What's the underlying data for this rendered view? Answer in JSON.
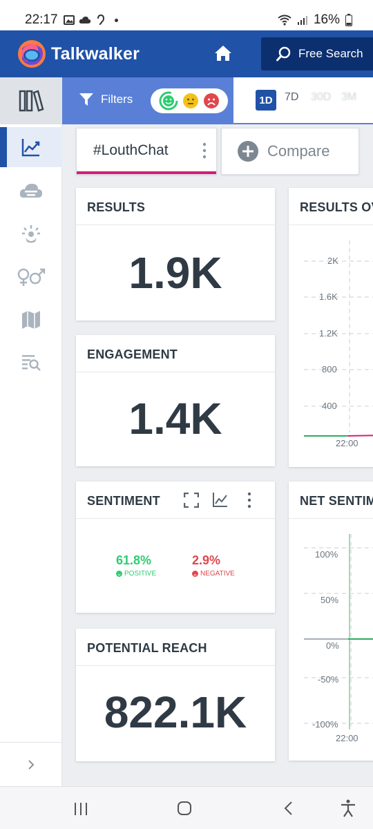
{
  "status_bar": {
    "time": "22:17",
    "battery": "16%"
  },
  "header": {
    "brand": "Talkwalker",
    "free_search_label": "Free Search"
  },
  "filter_bar": {
    "filters_label": "Filters",
    "time_ranges": [
      "1D",
      "7D",
      "30D",
      "3M"
    ],
    "selected_range": "1D"
  },
  "tabs": {
    "query": "#LouthChat",
    "compare": "Compare"
  },
  "results": {
    "title": "RESULTS",
    "value": "1.9K"
  },
  "engagement": {
    "title": "ENGAGEMENT",
    "value": "1.4K"
  },
  "sentiment": {
    "title": "SENTIMENT",
    "positive_value": "61.8%",
    "positive_label": "POSITIVE",
    "negative_value": "2.9%",
    "negative_label": "NEGATIVE"
  },
  "potential_reach": {
    "title": "POTENTIAL REACH",
    "value": "822.1K"
  },
  "results_over_time": {
    "title": "RESULTS OV",
    "y_ticks": [
      "2K",
      "1.6K",
      "1.2K",
      "800",
      "400"
    ],
    "x_tick": "22:00"
  },
  "net_sentiment": {
    "title": "NET SENTIM",
    "y_ticks": [
      "100%",
      "50%",
      "0%",
      "-50%",
      "-100%"
    ],
    "x_tick": "22:00"
  },
  "colors": {
    "brand_blue": "#2052a7",
    "accent_pink": "#d81b7a",
    "positive": "#2ecc71",
    "negative": "#e0474c"
  }
}
